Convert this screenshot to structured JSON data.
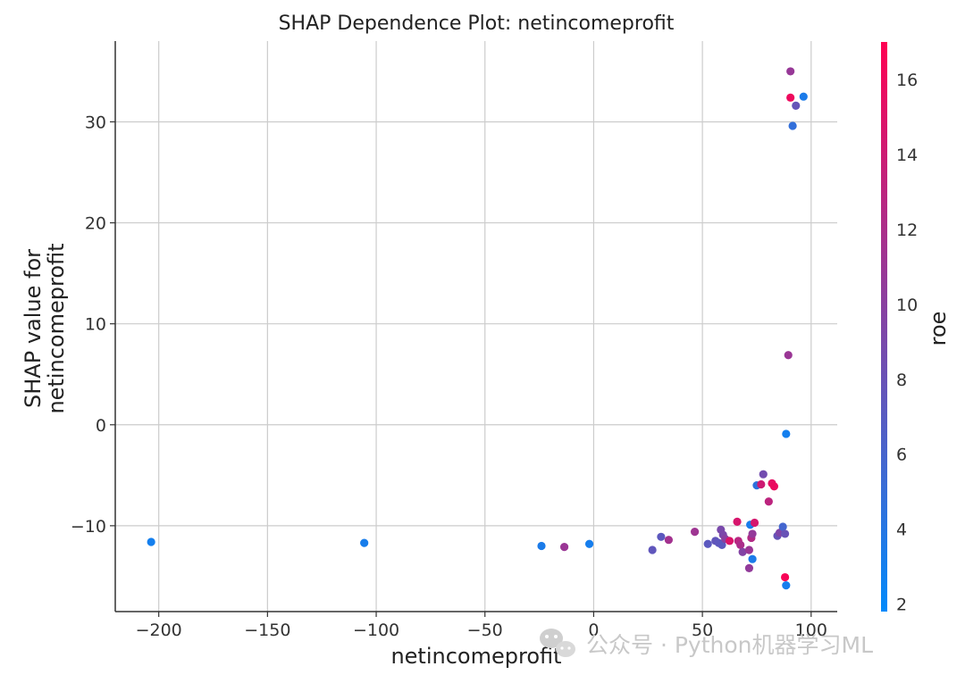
{
  "chart_data": {
    "type": "scatter",
    "title": "SHAP Dependence Plot: netincomeprofit",
    "xlabel": "netincomeprofit",
    "ylabel_lines": [
      "SHAP value for",
      "netincomeprofit"
    ],
    "colorbar_label": "roe",
    "xlim": [
      -220,
      112
    ],
    "ylim": [
      -18.5,
      38
    ],
    "xticks": [
      -200,
      -150,
      -100,
      -50,
      0,
      50,
      100
    ],
    "xtick_labels": [
      "−200",
      "−150",
      "−100",
      "−50",
      "0",
      "50",
      "100"
    ],
    "yticks": [
      -10,
      0,
      10,
      20,
      30
    ],
    "ytick_labels": [
      "−10",
      "0",
      "10",
      "20",
      "30"
    ],
    "grid": true,
    "colorbar_range": [
      1.8,
      17.0
    ],
    "colorbar_ticks": [
      2,
      4,
      6,
      8,
      10,
      12,
      14,
      16
    ],
    "colormap": [
      "#008afb",
      "#ff0052"
    ],
    "points": [
      {
        "x": -203.5,
        "y": -11.6,
        "c": 3.0
      },
      {
        "x": -105.5,
        "y": -11.7,
        "c": 3.2
      },
      {
        "x": -24.0,
        "y": -12.0,
        "c": 3.4
      },
      {
        "x": -13.5,
        "y": -12.1,
        "c": 11.0
      },
      {
        "x": -2.0,
        "y": -11.8,
        "c": 3.1
      },
      {
        "x": 27.0,
        "y": -12.4,
        "c": 7.5
      },
      {
        "x": 31.0,
        "y": -11.1,
        "c": 7.3
      },
      {
        "x": 34.5,
        "y": -11.4,
        "c": 11.5
      },
      {
        "x": 46.5,
        "y": -10.6,
        "c": 11.2
      },
      {
        "x": 52.5,
        "y": -11.8,
        "c": 7.2
      },
      {
        "x": 56.0,
        "y": -11.5,
        "c": 7.6
      },
      {
        "x": 57.5,
        "y": -11.7,
        "c": 7.4
      },
      {
        "x": 58.5,
        "y": -10.4,
        "c": 9.0
      },
      {
        "x": 59.0,
        "y": -11.9,
        "c": 7.3
      },
      {
        "x": 59.5,
        "y": -10.9,
        "c": 9.2
      },
      {
        "x": 60.5,
        "y": -11.3,
        "c": 10.0
      },
      {
        "x": 62.5,
        "y": -11.5,
        "c": 14.8
      },
      {
        "x": 66.0,
        "y": -9.6,
        "c": 14.6
      },
      {
        "x": 66.5,
        "y": -11.5,
        "c": 12.8
      },
      {
        "x": 67.5,
        "y": -11.9,
        "c": 12.0
      },
      {
        "x": 68.5,
        "y": -12.6,
        "c": 9.6
      },
      {
        "x": 71.5,
        "y": -12.4,
        "c": 11.0
      },
      {
        "x": 71.5,
        "y": -14.2,
        "c": 10.5
      },
      {
        "x": 72.0,
        "y": -9.9,
        "c": 3.3
      },
      {
        "x": 72.5,
        "y": -11.2,
        "c": 12.4
      },
      {
        "x": 73.0,
        "y": -10.8,
        "c": 10.6
      },
      {
        "x": 73.0,
        "y": -13.3,
        "c": 3.4
      },
      {
        "x": 74.0,
        "y": -9.7,
        "c": 14.5
      },
      {
        "x": 75.0,
        "y": -6.0,
        "c": 4.5
      },
      {
        "x": 77.0,
        "y": -5.9,
        "c": 14.0
      },
      {
        "x": 78.0,
        "y": -4.9,
        "c": 8.6
      },
      {
        "x": 80.5,
        "y": -7.6,
        "c": 13.0
      },
      {
        "x": 82.0,
        "y": -5.8,
        "c": 15.5
      },
      {
        "x": 83.0,
        "y": -6.1,
        "c": 15.8
      },
      {
        "x": 84.5,
        "y": -11.0,
        "c": 7.9
      },
      {
        "x": 85.5,
        "y": -10.7,
        "c": 9.4
      },
      {
        "x": 87.0,
        "y": -10.1,
        "c": 5.8
      },
      {
        "x": 88.0,
        "y": -10.8,
        "c": 8.0
      },
      {
        "x": 88.0,
        "y": -15.1,
        "c": 16.6
      },
      {
        "x": 88.5,
        "y": -15.9,
        "c": 3.1
      },
      {
        "x": 88.5,
        "y": -0.9,
        "c": 3.0
      },
      {
        "x": 89.5,
        "y": 6.9,
        "c": 11.0
      },
      {
        "x": 90.5,
        "y": 35.0,
        "c": 10.8
      },
      {
        "x": 90.5,
        "y": 32.4,
        "c": 16.0
      },
      {
        "x": 91.5,
        "y": 29.6,
        "c": 4.8
      },
      {
        "x": 93.0,
        "y": 31.6,
        "c": 7.8
      },
      {
        "x": 96.5,
        "y": 32.5,
        "c": 3.4
      }
    ]
  },
  "watermark": {
    "text": "公众号 · Python机器学习ML",
    "icon": "wechat-icon"
  }
}
